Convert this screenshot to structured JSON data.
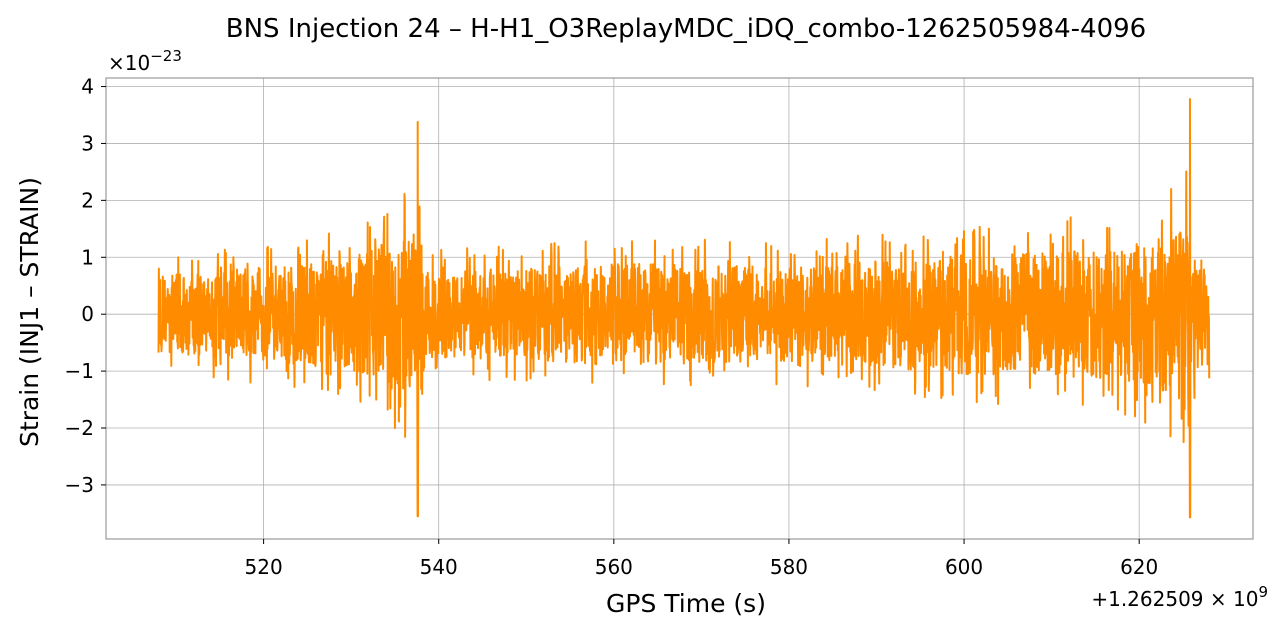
{
  "chart_data": {
    "type": "line",
    "title": "BNS Injection 24 – H-H1_O3ReplayMDC_iDQ_combo-1262505984-4096",
    "xlabel": "GPS Time (s)",
    "ylabel": "Strain (INJ1 – STRAIN)",
    "x_offset_label": "+1.262509 × 10",
    "x_offset_exponent": "9",
    "y_scale_label": "×10",
    "y_scale_exponent": "−23",
    "xlim": [
      502,
      633
    ],
    "ylim": [
      -3.95,
      4.15
    ],
    "x_ticks": [
      520,
      540,
      560,
      580,
      600,
      620
    ],
    "x_tick_labels": [
      "520",
      "540",
      "560",
      "580",
      "600",
      "620"
    ],
    "y_ticks": [
      -3,
      -2,
      -1,
      0,
      1,
      2,
      3,
      4
    ],
    "y_tick_labels": [
      "−3",
      "−2",
      "−1",
      "0",
      "1",
      "2",
      "3",
      "4"
    ],
    "grid": true,
    "series": [
      {
        "color": "#ff8c00",
        "x_range": [
          508,
          628
        ],
        "baseline_amplitude": 0.85,
        "envelope": [
          {
            "t": 508,
            "amp": 0.9
          },
          {
            "t": 520,
            "amp": 1.1
          },
          {
            "t": 530,
            "amp": 1.3
          },
          {
            "t": 536,
            "amp": 1.9
          },
          {
            "t": 537.8,
            "amp": 2.2
          },
          {
            "t": 538.5,
            "amp": 1.0
          },
          {
            "t": 560,
            "amp": 1.2
          },
          {
            "t": 580,
            "amp": 1.1
          },
          {
            "t": 600,
            "amp": 1.4
          },
          {
            "t": 615,
            "amp": 1.5
          },
          {
            "t": 623,
            "amp": 1.8
          },
          {
            "t": 625.5,
            "amp": 2.3
          },
          {
            "t": 626.5,
            "amp": 1.4
          },
          {
            "t": 628,
            "amp": 1.2
          }
        ],
        "spikes": [
          {
            "t": 537.6,
            "max": 3.38,
            "min": -3.55
          },
          {
            "t": 625.8,
            "max": 3.78,
            "min": -3.57
          }
        ]
      }
    ]
  }
}
